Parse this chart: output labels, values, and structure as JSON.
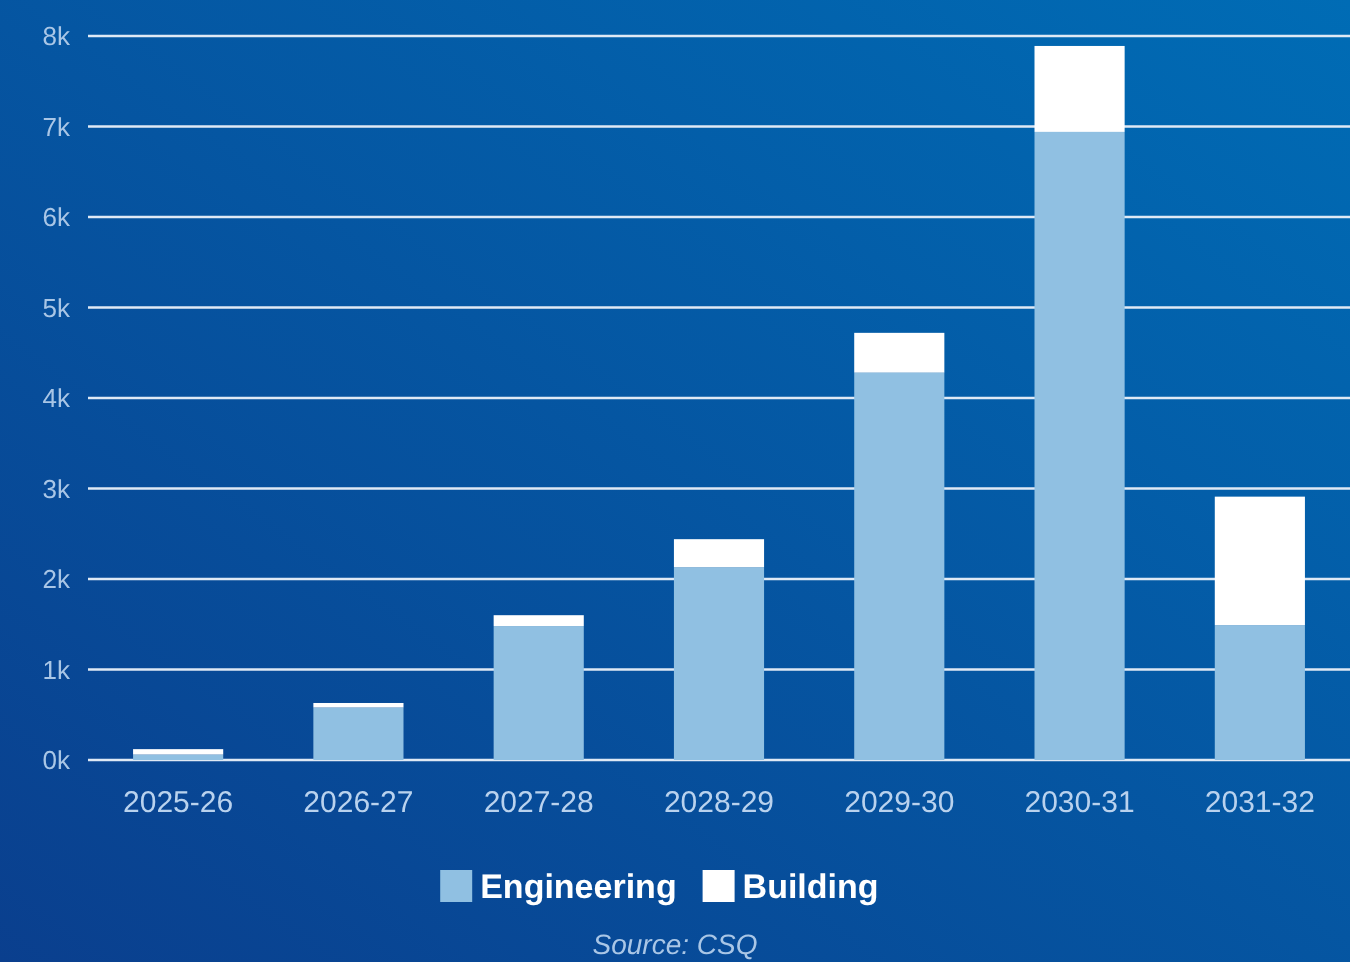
{
  "chart_data": {
    "type": "bar",
    "stacked": true,
    "categories": [
      "2025-26",
      "2026-27",
      "2027-28",
      "2028-29",
      "2029-30",
      "2030-31",
      "2031-32"
    ],
    "series": [
      {
        "name": "Engineering",
        "color": "#90c0e2",
        "values": [
          60,
          580,
          1480,
          2130,
          4280,
          6940,
          1490
        ]
      },
      {
        "name": "Building",
        "color": "#ffffff",
        "values": [
          60,
          50,
          120,
          310,
          440,
          950,
          1420
        ]
      }
    ],
    "ylim": [
      0,
      8000
    ],
    "yticks": [
      {
        "value": 0,
        "label": "0k"
      },
      {
        "value": 1000,
        "label": "1k"
      },
      {
        "value": 2000,
        "label": "2k"
      },
      {
        "value": 3000,
        "label": "3k"
      },
      {
        "value": 4000,
        "label": "4k"
      },
      {
        "value": 5000,
        "label": "5k"
      },
      {
        "value": 6000,
        "label": "6k"
      },
      {
        "value": 7000,
        "label": "7k"
      },
      {
        "value": 8000,
        "label": "8k"
      }
    ],
    "grid": "y",
    "legend": "bottom",
    "annotations": [
      "Source: CSQ"
    ]
  }
}
